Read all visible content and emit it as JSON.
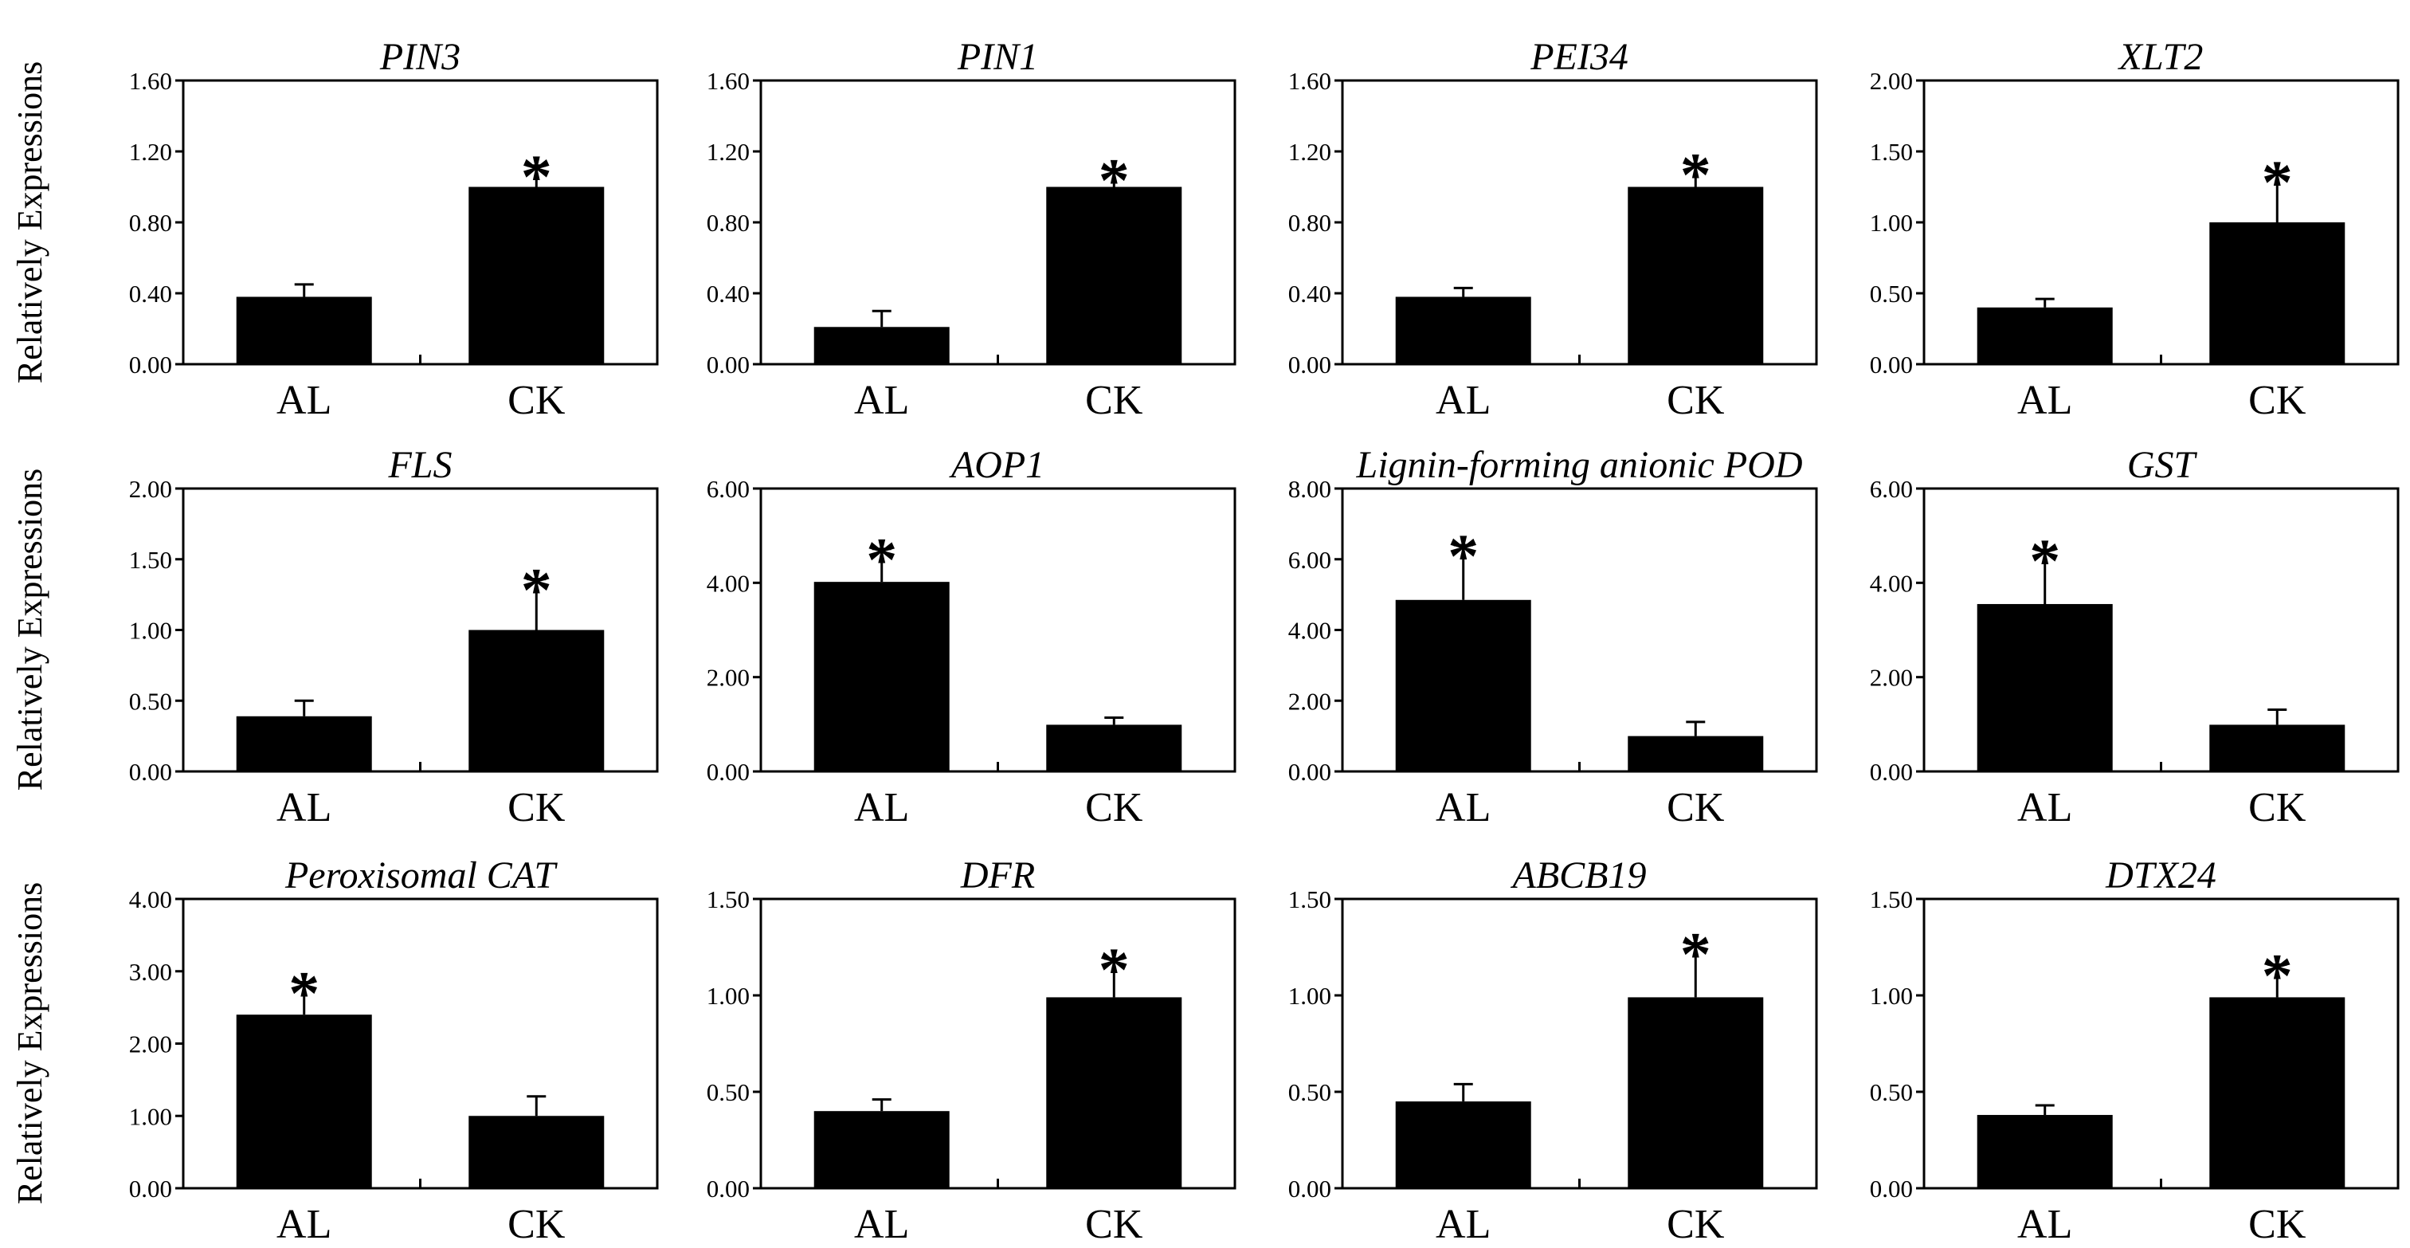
{
  "ylabel": "Relatively Expressions",
  "chart_data": [
    {
      "type": "bar",
      "title": "PIN3",
      "categories": [
        "AL",
        "CK"
      ],
      "values": [
        0.38,
        1.0
      ],
      "errors": [
        0.07,
        0.12
      ],
      "significant": [
        false,
        true
      ],
      "yticks": [
        "0.00",
        "0.40",
        "0.80",
        "1.20",
        "1.60"
      ],
      "ylim": [
        0,
        1.6
      ],
      "ylabel": "Relatively Expressions"
    },
    {
      "type": "bar",
      "title": "PIN1",
      "categories": [
        "AL",
        "CK"
      ],
      "values": [
        0.21,
        1.0
      ],
      "errors": [
        0.09,
        0.1
      ],
      "significant": [
        false,
        true
      ],
      "yticks": [
        "0.00",
        "0.40",
        "0.80",
        "1.20",
        "1.60"
      ],
      "ylim": [
        0,
        1.6
      ],
      "ylabel": ""
    },
    {
      "type": "bar",
      "title": "PEI34",
      "categories": [
        "AL",
        "CK"
      ],
      "values": [
        0.38,
        1.0
      ],
      "errors": [
        0.05,
        0.13
      ],
      "significant": [
        false,
        true
      ],
      "yticks": [
        "0.00",
        "0.40",
        "0.80",
        "1.20",
        "1.60"
      ],
      "ylim": [
        0,
        1.6
      ],
      "ylabel": ""
    },
    {
      "type": "bar",
      "title": "XLT2",
      "categories": [
        "AL",
        "CK"
      ],
      "values": [
        0.4,
        1.0
      ],
      "errors": [
        0.06,
        0.36
      ],
      "significant": [
        false,
        true
      ],
      "yticks": [
        "0.00",
        "0.50",
        "1.00",
        "1.50",
        "2.00"
      ],
      "ylim": [
        0,
        2.0
      ],
      "ylabel": ""
    },
    {
      "type": "bar",
      "title": "FLS",
      "categories": [
        "AL",
        "CK"
      ],
      "values": [
        0.39,
        1.0
      ],
      "errors": [
        0.11,
        0.36
      ],
      "significant": [
        false,
        true
      ],
      "yticks": [
        "0.00",
        "0.50",
        "1.00",
        "1.50",
        "2.00"
      ],
      "ylim": [
        0,
        2.0
      ],
      "ylabel": "Relatively Expressions"
    },
    {
      "type": "bar",
      "title": "AOP1",
      "categories": [
        "AL",
        "CK"
      ],
      "values": [
        4.02,
        0.99
      ],
      "errors": [
        0.7,
        0.15
      ],
      "significant": [
        true,
        false
      ],
      "yticks": [
        "0.00",
        "2.00",
        "4.00",
        "6.00"
      ],
      "ylim": [
        0,
        6.0
      ],
      "ylabel": ""
    },
    {
      "type": "bar",
      "title": "Lignin-forming anionic POD",
      "categories": [
        "AL",
        "CK"
      ],
      "values": [
        4.85,
        1.0
      ],
      "errors": [
        1.55,
        0.4
      ],
      "significant": [
        true,
        false
      ],
      "yticks": [
        "0.00",
        "2.00",
        "4.00",
        "6.00",
        "8.00"
      ],
      "ylim": [
        0,
        8.0
      ],
      "ylabel": ""
    },
    {
      "type": "bar",
      "title": "GST",
      "categories": [
        "AL",
        "CK"
      ],
      "values": [
        3.55,
        0.99
      ],
      "errors": [
        1.15,
        0.32
      ],
      "significant": [
        true,
        false
      ],
      "yticks": [
        "0.00",
        "2.00",
        "4.00",
        "6.00"
      ],
      "ylim": [
        0,
        6.0
      ],
      "ylabel": ""
    },
    {
      "type": "bar",
      "title": "Peroxisomal CAT",
      "categories": [
        "AL",
        "CK"
      ],
      "values": [
        2.4,
        1.0
      ],
      "errors": [
        0.45,
        0.27
      ],
      "significant": [
        true,
        false
      ],
      "yticks": [
        "0.00",
        "1.00",
        "2.00",
        "3.00",
        "4.00"
      ],
      "ylim": [
        0,
        4.0
      ],
      "ylabel": "Relatively Expressions"
    },
    {
      "type": "bar",
      "title": "DFR",
      "categories": [
        "AL",
        "CK"
      ],
      "values": [
        0.4,
        0.99
      ],
      "errors": [
        0.06,
        0.2
      ],
      "significant": [
        false,
        true
      ],
      "yticks": [
        "0.00",
        "0.50",
        "1.00",
        "1.50"
      ],
      "ylim": [
        0,
        1.5
      ],
      "ylabel": ""
    },
    {
      "type": "bar",
      "title": "ABCB19",
      "categories": [
        "AL",
        "CK"
      ],
      "values": [
        0.45,
        0.99
      ],
      "errors": [
        0.09,
        0.28
      ],
      "significant": [
        false,
        true
      ],
      "yticks": [
        "0.00",
        "0.50",
        "1.00",
        "1.50"
      ],
      "ylim": [
        0,
        1.5
      ],
      "ylabel": ""
    },
    {
      "type": "bar",
      "title": "DTX24",
      "categories": [
        "AL",
        "CK"
      ],
      "values": [
        0.38,
        0.99
      ],
      "errors": [
        0.05,
        0.17
      ],
      "significant": [
        false,
        true
      ],
      "yticks": [
        "0.00",
        "0.50",
        "1.00",
        "1.50"
      ],
      "ylim": [
        0,
        1.5
      ],
      "ylabel": ""
    }
  ]
}
